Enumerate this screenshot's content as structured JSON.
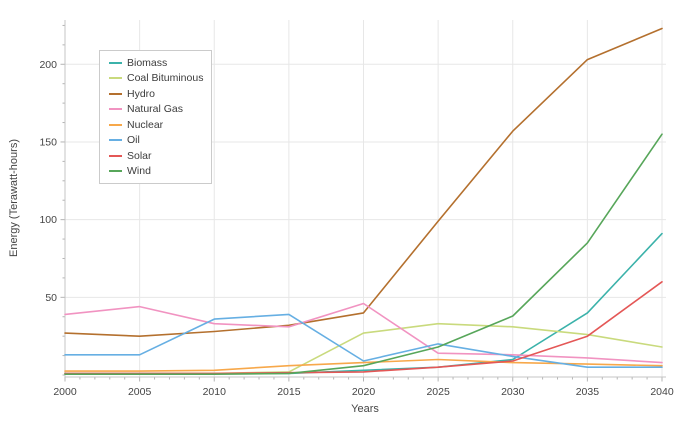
{
  "chart_data": {
    "type": "line",
    "title": "",
    "xlabel": "Years",
    "ylabel": "Energy (Terawatt-hours)",
    "x": [
      2000,
      2005,
      2010,
      2015,
      2020,
      2025,
      2030,
      2035,
      2040
    ],
    "xticks": [
      2000,
      2005,
      2010,
      2015,
      2020,
      2025,
      2030,
      2035,
      2040
    ],
    "yticks": [
      50,
      100,
      150,
      200
    ],
    "xlim": [
      2000,
      2040
    ],
    "ylim": [
      0,
      228
    ],
    "grid": true,
    "legend_position": "top-left",
    "series": [
      {
        "name": "Biomass",
        "color": "#3bb2aa",
        "values": [
          1,
          1,
          1,
          1,
          3,
          5,
          10,
          40,
          91
        ]
      },
      {
        "name": "Coal Bituminous",
        "color": "#c9da7d",
        "values": [
          1,
          1,
          1,
          2,
          27,
          33,
          31,
          26,
          18
        ]
      },
      {
        "name": "Hydro",
        "color": "#b4702e",
        "values": [
          27,
          25,
          28,
          32,
          40,
          99,
          157,
          203,
          223
        ]
      },
      {
        "name": "Natural Gas",
        "color": "#f193c1",
        "values": [
          39,
          44,
          33,
          31,
          46,
          14,
          13,
          11,
          8
        ]
      },
      {
        "name": "Nuclear",
        "color": "#f7a84a",
        "values": [
          2.5,
          2.5,
          3,
          6,
          8,
          10,
          8,
          7,
          6
        ]
      },
      {
        "name": "Oil",
        "color": "#66afe3",
        "values": [
          13,
          13,
          36,
          39,
          9,
          20,
          12,
          5,
          5
        ]
      },
      {
        "name": "Solar",
        "color": "#e45756",
        "values": [
          1,
          1,
          1,
          1.5,
          2,
          5,
          9,
          25,
          60
        ]
      },
      {
        "name": "Wind",
        "color": "#57a65a",
        "values": [
          0.5,
          0.5,
          0.5,
          1,
          6,
          18,
          38,
          85,
          155
        ]
      }
    ]
  },
  "colors": {
    "background": "#ffffff",
    "grid": "#e7e7e7",
    "axis": "#c4c4c4",
    "tick": "#b4b4b4",
    "text": "#454545",
    "legend_border": "#cbcbcb"
  }
}
